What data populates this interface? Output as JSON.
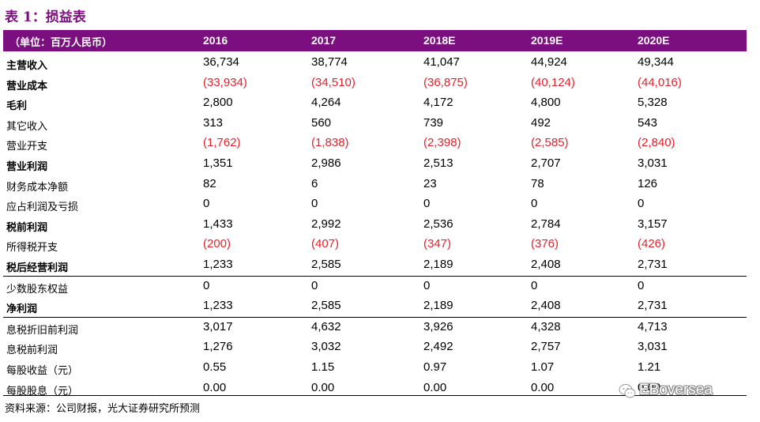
{
  "title": "表 1：损益表",
  "header": {
    "unit": "（单位：百万人民币）",
    "years": [
      "2016",
      "2017",
      "2018E",
      "2019E",
      "2020E"
    ]
  },
  "rows": [
    {
      "label": "主营收入",
      "bold": true,
      "values": [
        "36,734",
        "38,774",
        "41,047",
        "44,924",
        "49,344"
      ],
      "neg": false
    },
    {
      "label": "营业成本",
      "bold": true,
      "values": [
        "(33,934)",
        "(34,510)",
        "(36,875)",
        "(40,124)",
        "(44,016)"
      ],
      "neg": true
    },
    {
      "label": "毛利",
      "bold": true,
      "values": [
        "2,800",
        "4,264",
        "4,172",
        "4,800",
        "5,328"
      ],
      "neg": false
    },
    {
      "label": "其它收入",
      "bold": false,
      "values": [
        "313",
        "560",
        "739",
        "492",
        "543"
      ],
      "neg": false
    },
    {
      "label": "营业开支",
      "bold": false,
      "values": [
        "(1,762)",
        "(1,838)",
        "(2,398)",
        "(2,585)",
        "(2,840)"
      ],
      "neg": true
    },
    {
      "label": "营业利润",
      "bold": true,
      "values": [
        "1,351",
        "2,986",
        "2,513",
        "2,707",
        "3,031"
      ],
      "neg": false
    },
    {
      "label": "财务成本净额",
      "bold": false,
      "values": [
        "82",
        "6",
        "23",
        "78",
        "126"
      ],
      "neg": false
    },
    {
      "label": "应占利润及亏损",
      "bold": false,
      "values": [
        "0",
        "0",
        "0",
        "0",
        "0"
      ],
      "neg": false
    },
    {
      "label": "税前利润",
      "bold": true,
      "values": [
        "1,433",
        "2,992",
        "2,536",
        "2,784",
        "3,157"
      ],
      "neg": false
    },
    {
      "label": "所得税开支",
      "bold": false,
      "values": [
        "(200)",
        "(407)",
        "(347)",
        "(376)",
        "(426)"
      ],
      "neg": true
    },
    {
      "label": "税后经营利润",
      "bold": true,
      "values": [
        "1,233",
        "2,585",
        "2,189",
        "2,408",
        "2,731"
      ],
      "neg": false
    },
    {
      "label": "少数股东权益",
      "bold": false,
      "values": [
        "0",
        "0",
        "0",
        "0",
        "0"
      ],
      "neg": false,
      "sep": true
    },
    {
      "label": "净利润",
      "bold": true,
      "values": [
        "1,233",
        "2,585",
        "2,189",
        "2,408",
        "2,731"
      ],
      "neg": false
    },
    {
      "label": "息税折旧前利润",
      "bold": false,
      "values": [
        "3,017",
        "4,632",
        "3,926",
        "4,328",
        "4,713"
      ],
      "neg": false,
      "sep": true
    },
    {
      "label": "息税前利润",
      "bold": false,
      "values": [
        "1,276",
        "3,032",
        "2,492",
        "2,757",
        "3,031"
      ],
      "neg": false
    },
    {
      "label": "每股收益（元）",
      "bold": false,
      "values": [
        "0.55",
        "1.15",
        "0.97",
        "1.07",
        "1.21"
      ],
      "neg": false
    },
    {
      "label": "每股股息（元）",
      "bold": false,
      "values": [
        "0.00",
        "0.00",
        "0.00",
        "0.00",
        "0.00"
      ],
      "neg": false
    }
  ],
  "source": "资料来源：公司财报，光大证券研究所预测",
  "watermark": {
    "text": "EBoversea",
    "icon": "wechat-icon"
  }
}
